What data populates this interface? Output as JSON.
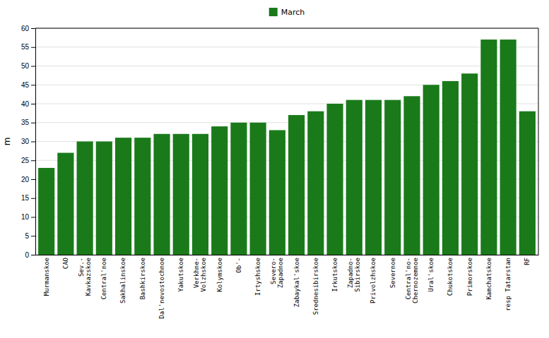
{
  "chart_data": {
    "type": "bar",
    "categories": [
      "Murmanskoe",
      "CAO",
      "Sev.-\nKavkazskoe",
      "Central'noe",
      "Sakhalinskoe",
      "Bashkirskoe",
      "Dal'nevostochnoe",
      "Yakutskoe",
      "Verkhne-\nVolzhskoe",
      "Kolymskoe",
      "Ob'-",
      "Irtyshskoe",
      "Severo-\nZapadnoe",
      "Zabaykal'skoe",
      "Srednesibirskoe",
      "Irkutskoe",
      "Zapadno-\nSibirskoe",
      "Privolzhskoe",
      "Severnoe",
      "Central'no-\nChernozemnoe",
      "Ural'skoe",
      "Chukotskoe",
      "Primorskoe",
      "Kamchatskoe",
      "resp Tatarstan",
      "RF"
    ],
    "series": [
      {
        "name": "March",
        "color": "#1a7a1a",
        "values": [
          23,
          27,
          30,
          30,
          31,
          31,
          32,
          32,
          32,
          34,
          35,
          35,
          33,
          37,
          38,
          40,
          41,
          41,
          41,
          42,
          45,
          46,
          48,
          57,
          57,
          38
        ]
      }
    ],
    "ylabel": "m",
    "ylim": [
      0,
      60
    ],
    "yticks": [
      0,
      5,
      10,
      15,
      20,
      25,
      30,
      35,
      40,
      45,
      50,
      55,
      60
    ],
    "grid": true,
    "legend": "top"
  }
}
